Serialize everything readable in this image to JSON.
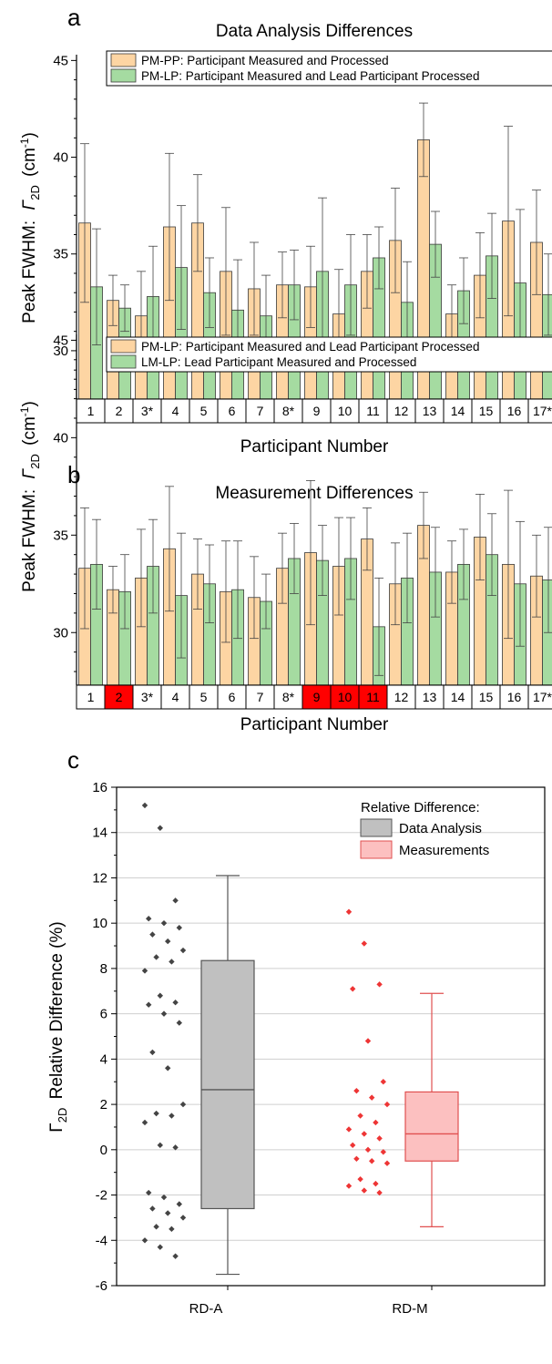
{
  "colors": {
    "orange": "#fdd5a3",
    "green": "#a5dba1",
    "grey": "#c0c0c0",
    "pink": "#fcc0c0",
    "red_point": "#ee3535",
    "dark_point": "#444444",
    "highlight": "#ff0000",
    "gridline": "#cfcfcf"
  },
  "chart_data": [
    {
      "panel": "a",
      "type": "bar",
      "title": "Data Analysis Differences",
      "xlabel": "Participant Number",
      "ylabel": "Peak FWHM:",
      "ylabel_symbol": "Γ",
      "ylabel_sub": "2D",
      "ylabel_unit_pre": "(cm",
      "ylabel_sup": "-1",
      "ylabel_unit_post": ")",
      "ylim": [
        27.5,
        45.3
      ],
      "yticks": [
        30,
        35,
        40,
        45
      ],
      "legend_position": "top",
      "categories": [
        "1",
        "2",
        "3*",
        "4",
        "5",
        "6",
        "7",
        "8*",
        "9",
        "10",
        "11",
        "12",
        "13",
        "14",
        "15",
        "16",
        "17*"
      ],
      "highlighted": [],
      "series": [
        {
          "name": "PM-PP: Participant Measured and Processed",
          "values": [
            36.6,
            32.6,
            31.8,
            36.4,
            36.6,
            34.1,
            33.2,
            33.4,
            33.3,
            31.9,
            34.1,
            35.7,
            40.9,
            31.9,
            33.9,
            36.7,
            35.6
          ],
          "errors": [
            4.1,
            1.3,
            2.3,
            3.8,
            2.5,
            3.3,
            2.4,
            1.7,
            2.1,
            2.3,
            1.9,
            2.7,
            1.9,
            1.5,
            2.2,
            4.9,
            2.7
          ]
        },
        {
          "name": "PM-LP: Participant Measured and Lead Participant Processed",
          "values": [
            33.3,
            32.2,
            32.8,
            34.3,
            33.0,
            32.1,
            31.8,
            33.4,
            34.1,
            33.4,
            34.8,
            32.5,
            35.5,
            33.1,
            34.9,
            33.5,
            32.9
          ],
          "errors": [
            3.0,
            1.2,
            2.6,
            3.2,
            1.8,
            2.6,
            2.1,
            1.8,
            3.8,
            2.6,
            1.6,
            2.1,
            1.7,
            1.7,
            2.2,
            3.8,
            2.1
          ]
        }
      ]
    },
    {
      "panel": "b",
      "type": "bar",
      "title": "Measurement Differences",
      "xlabel": "Participant Number",
      "ylabel": "Peak FWHM:",
      "ylabel_symbol": "Γ",
      "ylabel_sub": "2D",
      "ylabel_unit_pre": "(cm",
      "ylabel_sup": "-1",
      "ylabel_unit_post": ")",
      "ylim": [
        27.3,
        45.3
      ],
      "yticks": [
        30,
        35,
        40,
        45
      ],
      "legend_position": "top",
      "categories": [
        "1",
        "2",
        "3*",
        "4",
        "5",
        "6",
        "7",
        "8*",
        "9",
        "10",
        "11",
        "12",
        "13",
        "14",
        "15",
        "16",
        "17*"
      ],
      "highlighted": [
        "2",
        "9",
        "10",
        "11"
      ],
      "series": [
        {
          "name": "PM-LP: Participant Measured and Lead Participant Processed",
          "values": [
            33.3,
            32.2,
            32.8,
            34.3,
            33.0,
            32.1,
            31.8,
            33.3,
            34.1,
            33.4,
            34.8,
            32.5,
            35.5,
            33.1,
            34.9,
            33.5,
            32.9
          ],
          "errors": [
            3.1,
            1.2,
            2.5,
            3.2,
            1.8,
            2.6,
            2.1,
            1.8,
            3.7,
            2.5,
            1.6,
            2.1,
            1.7,
            1.6,
            2.2,
            3.8,
            2.1
          ]
        },
        {
          "name": "LM-LP: Lead Participant Measured and Processed",
          "values": [
            33.5,
            32.1,
            33.4,
            31.9,
            32.5,
            32.2,
            31.6,
            33.8,
            33.7,
            33.8,
            30.3,
            32.8,
            33.1,
            33.5,
            34.0,
            32.5,
            32.7
          ],
          "errors": [
            2.3,
            1.9,
            2.4,
            3.2,
            2.0,
            2.5,
            1.4,
            1.8,
            1.8,
            2.1,
            2.5,
            2.3,
            2.3,
            1.8,
            2.1,
            3.2,
            2.7
          ]
        }
      ]
    },
    {
      "panel": "c",
      "type": "box",
      "ylabel": "Relative Difference (%)",
      "ylabel_symbol": "Γ",
      "ylabel_sub": "2D",
      "ylim": [
        -6,
        16
      ],
      "yticks": [
        -6,
        -4,
        -2,
        0,
        2,
        4,
        6,
        8,
        10,
        12,
        14,
        16
      ],
      "grid": true,
      "legend_position": "top-right",
      "legend_title": "Relative Difference:",
      "categories": [
        "RD-A",
        "RD-M"
      ],
      "series": [
        {
          "name": "Data Analysis",
          "category": "RD-A",
          "whisker_low": -5.5,
          "q1": -2.6,
          "median": 2.65,
          "q3": 8.35,
          "whisker_high": 12.1,
          "points": [
            15.2,
            14.2,
            11.0,
            10.2,
            10.0,
            9.8,
            9.5,
            9.2,
            8.8,
            8.5,
            8.3,
            7.9,
            6.8,
            6.5,
            6.4,
            6.0,
            5.6,
            4.3,
            3.6,
            2.0,
            1.6,
            1.5,
            1.2,
            0.2,
            0.1,
            -1.9,
            -2.1,
            -2.4,
            -2.6,
            -2.8,
            -3.0,
            -3.4,
            -3.5,
            -4.0,
            -4.3,
            -4.7
          ]
        },
        {
          "name": "Measurements",
          "category": "RD-M",
          "whisker_low": -3.4,
          "q1": -0.5,
          "median": 0.7,
          "q3": 2.55,
          "whisker_high": 6.9,
          "points": [
            10.5,
            9.1,
            7.3,
            7.1,
            4.8,
            3.0,
            2.6,
            2.3,
            2.0,
            1.5,
            1.2,
            0.9,
            0.7,
            0.5,
            0.2,
            0.0,
            -0.1,
            -0.4,
            -0.5,
            -0.6,
            -1.3,
            -1.5,
            -1.6,
            -1.8,
            -1.9
          ]
        }
      ]
    }
  ]
}
